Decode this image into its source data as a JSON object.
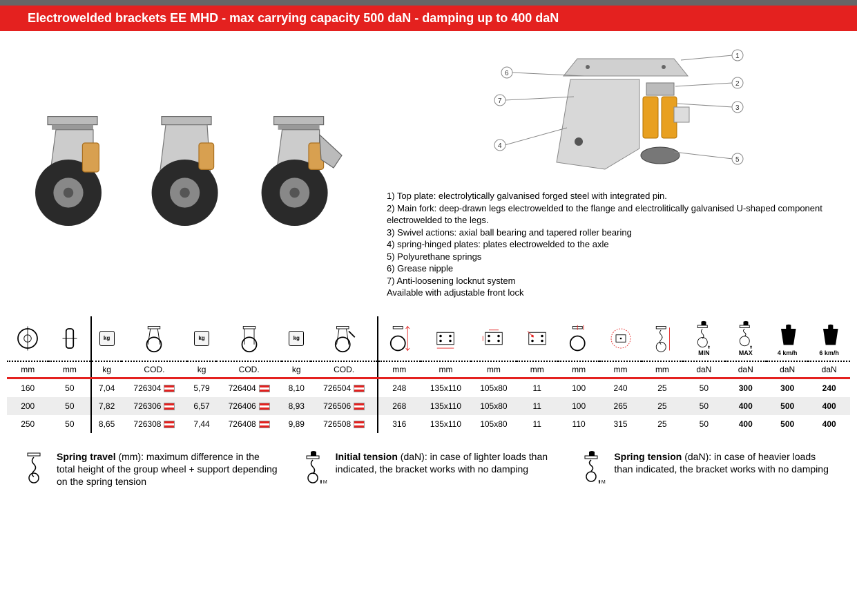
{
  "header": {
    "title": "Electrowelded brackets EE MHD  - max carrying capacity 500 daN - damping up to 400 daN"
  },
  "diagram": {
    "items": [
      "1) Top plate: electrolytically galvanised forged steel with integrated pin.",
      "2) Main fork: deep-drawn legs electrowelded to the flange and  electrolitically galvanised U-shaped  component electrowelded to the legs.",
      "3) Swivel actions: axial ball bearing and tapered roller bearing",
      "4) spring-hinged plates: plates electrowelded to the axle",
      "5) Polyurethane springs",
      "6) Grease nipple",
      "7) Anti-loosening locknut system",
      "Available with adjustable front lock"
    ],
    "callouts": [
      "1",
      "2",
      "3",
      "4",
      "5",
      "6",
      "7"
    ]
  },
  "table": {
    "units": [
      "mm",
      "mm",
      "kg",
      "COD.",
      "kg",
      "COD.",
      "kg",
      "COD.",
      "mm",
      "mm",
      "mm",
      "mm",
      "mm",
      "mm",
      "mm",
      "daN",
      "daN",
      "daN",
      "daN"
    ],
    "speed_labels": [
      "4 km/h",
      "6 km/h"
    ],
    "min_label": "MIN",
    "max_label": "MAX",
    "rows": [
      {
        "c": [
          "160",
          "50",
          "7,04",
          "726304",
          "5,79",
          "726404",
          "8,10",
          "726504",
          "248",
          "135x110",
          "105x80",
          "11",
          "100",
          "240",
          "25",
          "50",
          "300",
          "300",
          "240"
        ]
      },
      {
        "c": [
          "200",
          "50",
          "7,82",
          "726306",
          "6,57",
          "726406",
          "8,93",
          "726506",
          "268",
          "135x110",
          "105x80",
          "11",
          "100",
          "265",
          "25",
          "50",
          "400",
          "500",
          "400"
        ]
      },
      {
        "c": [
          "250",
          "50",
          "8,65",
          "726308",
          "7,44",
          "726408",
          "9,89",
          "726508",
          "316",
          "135x110",
          "105x80",
          "11",
          "110",
          "315",
          "25",
          "50",
          "400",
          "500",
          "400"
        ]
      }
    ]
  },
  "footer": {
    "defs": [
      {
        "term": "Spring travel",
        "unit": "(mm)",
        "text": ": maximum difference in the total height of the group wheel + support depending on the spring tension"
      },
      {
        "term": "Initial tension",
        "unit": "(daN)",
        "text": ": in case of lighter loads than indicated, the bracket works with no damping",
        "sub": "MIN"
      },
      {
        "term": "Spring tension",
        "unit": "(daN)",
        "text": ": in case of heavier loads than indicated, the bracket works with no damping",
        "sub": "MAX"
      }
    ]
  },
  "colors": {
    "accent": "#e4211f",
    "spring": "#e8a020",
    "steel": "#c0c0c0"
  }
}
